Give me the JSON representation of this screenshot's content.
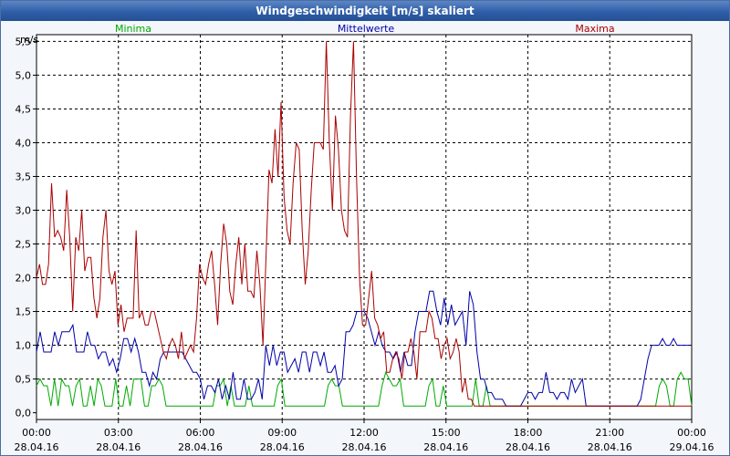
{
  "window": {
    "title": "Windgeschwindigkeit [m/s] skaliert"
  },
  "chart_data": {
    "type": "line",
    "title": "Windgeschwindigkeit [m/s] skaliert",
    "ylabel": "m/s",
    "ylim": [
      -0.1,
      5.6
    ],
    "yticks": [
      "0,0",
      "0,5",
      "1,0",
      "1,5",
      "2,0",
      "2,5",
      "3,0",
      "3,5",
      "4,0",
      "4,5",
      "5,0",
      "5,5"
    ],
    "ytick_values": [
      0,
      0.5,
      1,
      1.5,
      2,
      2.5,
      3,
      3.5,
      4,
      4.5,
      5,
      5.5
    ],
    "xlim": [
      0,
      24
    ],
    "xticks": [
      {
        "time": "00:00",
        "date": "28.04.16"
      },
      {
        "time": "03:00",
        "date": "28.04.16"
      },
      {
        "time": "06:00",
        "date": "28.04.16"
      },
      {
        "time": "09:00",
        "date": "28.04.16"
      },
      {
        "time": "12:00",
        "date": "28.04.16"
      },
      {
        "time": "15:00",
        "date": "28.04.16"
      },
      {
        "time": "18:00",
        "date": "28.04.16"
      },
      {
        "time": "21:00",
        "date": "28.04.16"
      },
      {
        "time": "00:00",
        "date": "29.04.16"
      }
    ],
    "xtick_hours": [
      0,
      3,
      6,
      9,
      12,
      15,
      18,
      21,
      24
    ],
    "grid": true,
    "interval_hours": 0.1667,
    "series": [
      {
        "name": "Minima",
        "color": "#00aa00",
        "values": [
          0.4,
          0.5,
          0.4,
          0.4,
          0.1,
          0.5,
          0.1,
          0.5,
          0.4,
          0.4,
          0.1,
          0.4,
          0.5,
          0.1,
          0.1,
          0.4,
          0.1,
          0.5,
          0.4,
          0.1,
          0.1,
          0.1,
          0.5,
          0.1,
          0.1,
          0.4,
          0.1,
          0.5,
          0.5,
          0.5,
          0.1,
          0.1,
          0.4,
          0.4,
          0.5,
          0.4,
          0.1,
          0.1,
          0.1,
          0.1,
          0.1,
          0.1,
          0.1,
          0.1,
          0.1,
          0.1,
          0.1,
          0.1,
          0.1,
          0.1,
          0.4,
          0.4,
          0.5,
          0.1,
          0.4,
          0.1,
          0.1,
          0.1,
          0.1,
          0.4,
          0.1,
          0.1,
          0.1,
          0.1,
          0.1,
          0.1,
          0.1,
          0.4,
          0.5,
          0.1,
          0.1,
          0.1,
          0.1,
          0.1,
          0.1,
          0.1,
          0.1,
          0.1,
          0.1,
          0.1,
          0.1,
          0.4,
          0.5,
          0.4,
          0.4,
          0.1,
          0.1,
          0.1,
          0.1,
          0.1,
          0.1,
          0.1,
          0.1,
          0.1,
          0.1,
          0.1,
          0.4,
          0.6,
          0.5,
          0.4,
          0.4,
          0.5,
          0.1,
          0.1,
          0.1,
          0.1,
          0.1,
          0.1,
          0.1,
          0.4,
          0.5,
          0.1,
          0.1,
          0.4,
          0.1,
          0.1,
          0.1,
          0.1,
          0.1,
          0.1,
          0.1,
          0.1,
          0.5,
          0.1,
          0.1,
          0.4,
          0.1,
          0.1,
          0.1,
          0.1,
          0.1,
          0.1,
          0.1,
          0.1,
          0.1,
          0.1,
          0.1,
          0.1,
          0.1,
          0.1,
          0.1,
          0.1,
          0.1,
          0.1,
          0.1,
          0.1,
          0.1,
          0.1,
          0.1,
          0.1,
          0.1,
          0.1,
          0.1,
          0.1,
          0.1,
          0.1,
          0.1,
          0.1,
          0.1,
          0.1,
          0.1,
          0.1,
          0.1,
          0.1,
          0.1,
          0.1,
          0.1,
          0.1,
          0.1,
          0.1,
          0.1,
          0.1,
          0.1,
          0.4,
          0.5,
          0.4,
          0.1,
          0.1,
          0.5,
          0.6,
          0.5,
          0.5,
          0.1
        ]
      },
      {
        "name": "Mittelwerte",
        "color": "#0000aa",
        "values": [
          0.9,
          1.2,
          0.9,
          0.9,
          0.9,
          1.2,
          1.0,
          1.2,
          1.2,
          1.2,
          1.3,
          0.9,
          0.9,
          0.9,
          1.2,
          1.0,
          1.0,
          0.8,
          0.9,
          0.9,
          0.7,
          0.8,
          0.6,
          0.8,
          1.1,
          1.1,
          0.9,
          1.1,
          0.9,
          0.6,
          0.6,
          0.4,
          0.6,
          0.5,
          0.8,
          0.9,
          0.9,
          0.9,
          0.9,
          0.9,
          0.9,
          0.8,
          0.7,
          0.6,
          0.6,
          0.5,
          0.2,
          0.4,
          0.4,
          0.3,
          0.5,
          0.2,
          0.4,
          0.2,
          0.6,
          0.2,
          0.2,
          0.5,
          0.2,
          0.2,
          0.3,
          0.5,
          0.2,
          1.0,
          0.7,
          1.0,
          0.7,
          0.9,
          0.9,
          0.6,
          0.7,
          0.8,
          0.6,
          0.9,
          0.9,
          0.6,
          0.9,
          0.9,
          0.7,
          0.9,
          0.6,
          0.6,
          0.7,
          0.4,
          0.5,
          1.2,
          1.2,
          1.3,
          1.5,
          1.5,
          1.5,
          1.4,
          1.2,
          1.0,
          1.2,
          1.0,
          0.9,
          0.9,
          0.8,
          0.9,
          0.6,
          0.9,
          0.7,
          0.7,
          1.2,
          1.5,
          1.5,
          1.5,
          1.8,
          1.8,
          1.5,
          1.3,
          1.7,
          1.3,
          1.6,
          1.3,
          1.4,
          1.5,
          1.0,
          1.8,
          1.6,
          0.9,
          0.5,
          0.5,
          0.3,
          0.3,
          0.2,
          0.2,
          0.2,
          0.1,
          0.1,
          0.1,
          0.1,
          0.1,
          0.2,
          0.3,
          0.3,
          0.2,
          0.3,
          0.3,
          0.6,
          0.3,
          0.3,
          0.2,
          0.3,
          0.3,
          0.2,
          0.5,
          0.3,
          0.4,
          0.5,
          0.1,
          0.1,
          0.1,
          0.1,
          0.1,
          0.1,
          0.1,
          0.1,
          0.1,
          0.1,
          0.1,
          0.1,
          0.1,
          0.1,
          0.1,
          0.2,
          0.5,
          0.8,
          1.0,
          1.0,
          1.0,
          1.1,
          1.0,
          1.0,
          1.1,
          1.0,
          1.0,
          1.0,
          1.0,
          1.0
        ]
      },
      {
        "name": "Maxima",
        "color": "#aa0000",
        "values": [
          2.0,
          2.2,
          1.9,
          1.9,
          2.2,
          3.4,
          2.6,
          2.7,
          2.6,
          2.4,
          3.3,
          2.6,
          1.5,
          2.6,
          2.4,
          3.0,
          2.1,
          2.3,
          2.3,
          1.7,
          1.4,
          1.7,
          2.6,
          3.0,
          2.1,
          1.9,
          2.1,
          1.3,
          1.6,
          1.2,
          1.4,
          1.4,
          1.4,
          2.7,
          1.4,
          1.5,
          1.3,
          1.3,
          1.5,
          1.5,
          1.3,
          1.1,
          0.9,
          0.8,
          1.0,
          1.1,
          1.0,
          0.8,
          1.2,
          0.8,
          0.9,
          1.0,
          0.9,
          1.4,
          2.2,
          2.0,
          1.9,
          2.2,
          2.4,
          1.9,
          1.3,
          2.2,
          2.8,
          2.5,
          1.8,
          1.6,
          2.2,
          2.6,
          1.9,
          2.5,
          1.8,
          1.8,
          1.7,
          2.4,
          1.9,
          1.0,
          2.3,
          3.6,
          3.4,
          4.2,
          3.5,
          4.6,
          3.2,
          2.7,
          2.5,
          3.4,
          4.0,
          3.9,
          2.7,
          1.9,
          2.4,
          3.3,
          4.0,
          4.0,
          4.0,
          3.9,
          5.5,
          4.0,
          3.0,
          4.4,
          3.9,
          3.0,
          2.7,
          2.6,
          4.4,
          5.5,
          3.5,
          2.0,
          1.3,
          1.3,
          1.7,
          2.1,
          1.4,
          1.3,
          1.1,
          1.2,
          0.6,
          0.6,
          0.8,
          0.9,
          0.8,
          0.5,
          0.9,
          0.9,
          1.1,
          0.9,
          0.5,
          1.2,
          1.2,
          1.2,
          1.5,
          1.4,
          1.1,
          1.1,
          0.8,
          1.0,
          1.1,
          0.8,
          0.9,
          1.1,
          0.9,
          0.3,
          0.5,
          0.2,
          0.2,
          0.1,
          0.1,
          0.1,
          0.1,
          0.1,
          0.1,
          0.1,
          0.1,
          0.1,
          0.1,
          0.1,
          0.1,
          0.1,
          0.1,
          0.1,
          0.1,
          0.1,
          0.1,
          0.1,
          0.1,
          0.1,
          0.1,
          0.1,
          0.1,
          0.1,
          0.1,
          0.1,
          0.1,
          0.1,
          0.1,
          0.1,
          0.1,
          0.1,
          0.1,
          0.1,
          0.1,
          0.1,
          0.1,
          0.1,
          0.1,
          0.1,
          0.1,
          0.1,
          0.1,
          0.1,
          0.1,
          0.1,
          0.1,
          0.1,
          0.1,
          0.1,
          0.1,
          0.1,
          0.1,
          0.1,
          0.1,
          0.1,
          0.1,
          0.1,
          0.1,
          0.1,
          0.1,
          0.1,
          0.1,
          0.1,
          0.1,
          0.1,
          0.1,
          0.1,
          0.1,
          0.1,
          0.1,
          0.1
        ]
      }
    ]
  }
}
